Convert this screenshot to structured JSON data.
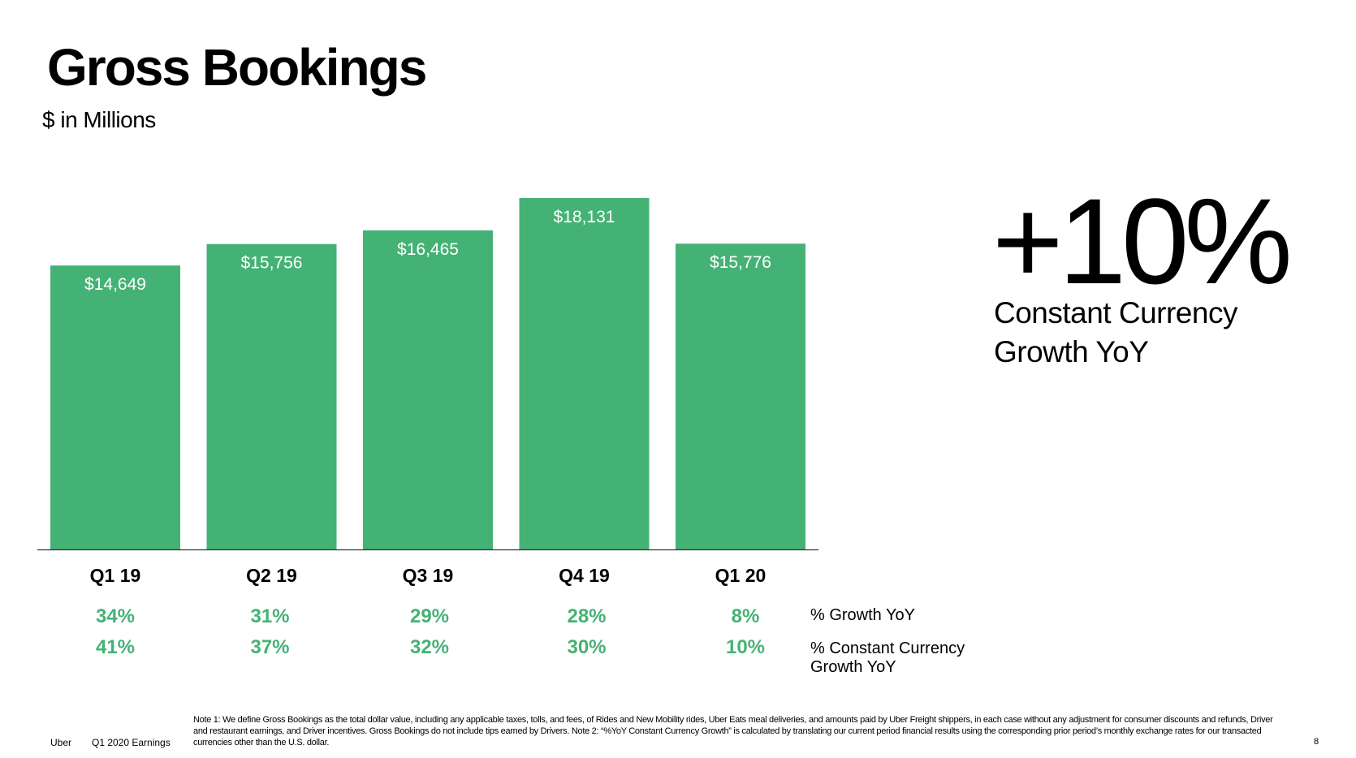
{
  "header": {
    "title": "Gross Bookings",
    "subtitle": "$ in Millions"
  },
  "chart_data": {
    "type": "bar",
    "title": "Gross Bookings",
    "subtitle": "$ in Millions",
    "categories": [
      "Q1 19",
      "Q2 19",
      "Q3 19",
      "Q4 19",
      "Q1 20"
    ],
    "values": [
      14649,
      15756,
      16465,
      18131,
      15776
    ],
    "value_labels": [
      "$14,649",
      "$15,756",
      "$16,465",
      "$18,131",
      "$15,776"
    ],
    "ylim": [
      0,
      18131
    ],
    "grid": false,
    "legend": "none",
    "bar_color": "#45b275",
    "rows": [
      {
        "name": "% Growth YoY",
        "values": [
          "34%",
          "31%",
          "29%",
          "28%",
          "8%"
        ]
      },
      {
        "name": "% Constant Currency Growth YoY",
        "values": [
          "41%",
          "37%",
          "32%",
          "30%",
          "10%"
        ]
      }
    ]
  },
  "highlight": {
    "value": "+10%",
    "label_line1": "Constant Currency",
    "label_line2": "Growth YoY"
  },
  "row_labels": {
    "growth": "% Growth YoY",
    "cc_line1": "% Constant Currency",
    "cc_line2": "Growth YoY"
  },
  "footer": {
    "logo": "Uber",
    "report": "Q1 2020 Earnings",
    "note": "Note 1: We define Gross Bookings as the total dollar value, including any applicable taxes, tolls, and fees, of Rides and New Mobility rides, Uber Eats meal deliveries, and amounts paid by Uber Freight shippers, in each case without any adjustment for consumer discounts and refunds, Driver and restaurant earnings, and Driver incentives. Gross Bookings do not include tips earned by Drivers. Note 2: “%YoY Constant Currency Growth” is calculated by translating our current period financial results using the corresponding prior period’s monthly exchange rates for our transacted currencies other than the U.S. dollar.",
    "page": "8"
  },
  "colors": {
    "accent": "#45b275",
    "text": "#000000",
    "background": "#ffffff"
  }
}
